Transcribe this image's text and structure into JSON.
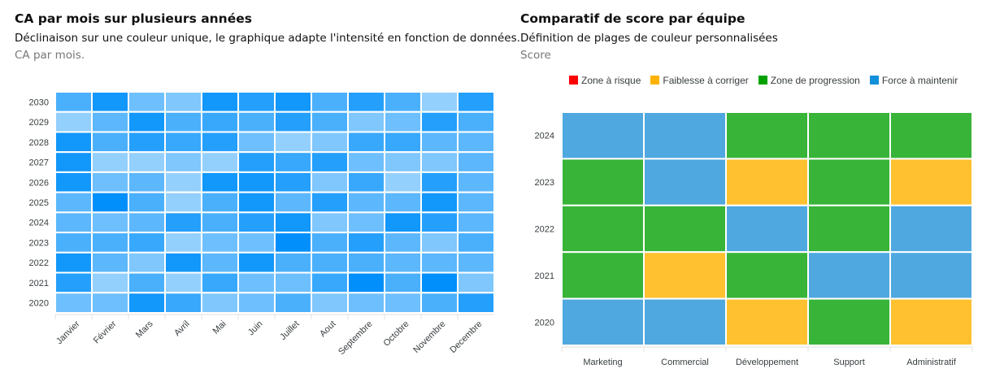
{
  "left": {
    "title": "CA par mois sur plusieurs années",
    "subtitle": "Déclinaison sur une couleur unique, le graphique adapte l'intensité en fonction de données.",
    "ylabel": "CA par mois."
  },
  "right": {
    "title": "Comparatif de score par équipe",
    "subtitle": "Définition de plages de couleur personnalisées",
    "ylabel": "Score"
  },
  "chart_data": [
    {
      "type": "heatmap",
      "color": "#008FFB",
      "categories": [
        "Janvier",
        "Février",
        "Mars",
        "Avril",
        "Mai",
        "Juin",
        "Juillet",
        "Aout",
        "Septembre",
        "Octobre",
        "Novembre",
        "Decembre"
      ],
      "rows": [
        "2030",
        "2029",
        "2028",
        "2027",
        "2026",
        "2025",
        "2024",
        "2023",
        "2022",
        "2021",
        "2020"
      ],
      "values": [
        [
          60,
          90,
          40,
          30,
          90,
          80,
          90,
          60,
          80,
          60,
          20,
          80
        ],
        [
          20,
          50,
          90,
          60,
          70,
          60,
          80,
          60,
          30,
          40,
          80,
          60
        ],
        [
          90,
          60,
          80,
          70,
          80,
          40,
          20,
          30,
          70,
          70,
          50,
          50
        ],
        [
          90,
          20,
          20,
          30,
          20,
          80,
          70,
          80,
          40,
          30,
          30,
          50
        ],
        [
          90,
          40,
          50,
          20,
          90,
          90,
          80,
          30,
          70,
          20,
          80,
          50
        ],
        [
          50,
          100,
          60,
          20,
          60,
          90,
          50,
          80,
          50,
          50,
          90,
          50
        ],
        [
          50,
          40,
          50,
          80,
          60,
          80,
          90,
          30,
          40,
          90,
          80,
          50
        ],
        [
          60,
          60,
          70,
          20,
          40,
          40,
          100,
          60,
          80,
          50,
          30,
          60
        ],
        [
          90,
          50,
          30,
          90,
          50,
          90,
          60,
          60,
          60,
          50,
          50,
          50
        ],
        [
          80,
          20,
          60,
          20,
          70,
          40,
          40,
          70,
          100,
          60,
          100,
          30
        ],
        [
          40,
          40,
          90,
          70,
          30,
          40,
          60,
          30,
          40,
          40,
          60,
          80
        ]
      ]
    },
    {
      "type": "heatmap",
      "legend": [
        {
          "name": "Zone à risque",
          "color": "#FF0000"
        },
        {
          "name": "Faiblesse à corriger",
          "color": "#FFB200"
        },
        {
          "name": "Zone de progression",
          "color": "#00A100"
        },
        {
          "name": "Force à maintenir",
          "color": "#128FD9"
        }
      ],
      "legend_position": "top",
      "categories": [
        "Marketing",
        "Commercial",
        "Développement",
        "Support",
        "Administratif"
      ],
      "rows": [
        "2024",
        "2023",
        "2022",
        "2021",
        "2020"
      ],
      "cells": [
        [
          "Force à maintenir",
          "Force à maintenir",
          "Zone de progression",
          "Zone de progression",
          "Zone de progression"
        ],
        [
          "Zone de progression",
          "Force à maintenir",
          "Faiblesse à corriger",
          "Zone de progression",
          "Faiblesse à corriger"
        ],
        [
          "Zone de progression",
          "Zone de progression",
          "Force à maintenir",
          "Zone de progression",
          "Force à maintenir"
        ],
        [
          "Zone de progression",
          "Faiblesse à corriger",
          "Zone de progression",
          "Force à maintenir",
          "Force à maintenir"
        ],
        [
          "Force à maintenir",
          "Force à maintenir",
          "Faiblesse à corriger",
          "Zone de progression",
          "Faiblesse à corriger"
        ]
      ]
    }
  ]
}
